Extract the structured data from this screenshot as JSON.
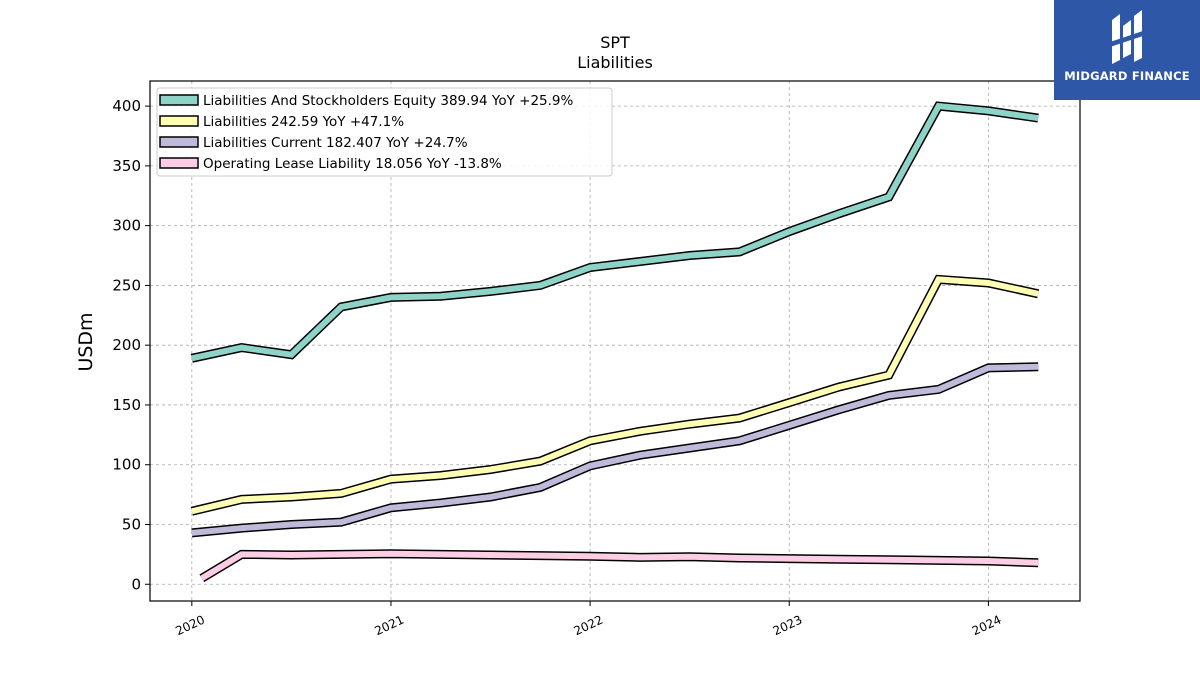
{
  "chart_data": {
    "type": "line",
    "title": "SPT",
    "subtitle": "Liabilities",
    "ylabel": "USDm",
    "xlabel": "",
    "ylim": [
      -14,
      421
    ],
    "xlim": [
      2019.79,
      2024.46
    ],
    "yticks": [
      0,
      50,
      100,
      150,
      200,
      250,
      300,
      350,
      400
    ],
    "xticks": [
      {
        "value": 2020,
        "label": "2020"
      },
      {
        "value": 2021,
        "label": "2021"
      },
      {
        "value": 2022,
        "label": "2022"
      },
      {
        "value": 2023,
        "label": "2023"
      },
      {
        "value": 2024,
        "label": "2024"
      }
    ],
    "grid": true,
    "legend_position": "top-left",
    "series": [
      {
        "name": "Liabilities And Stockholders Equity  389.94 YoY +25.9%",
        "color": "#8dd3c7",
        "x": [
          2020.0,
          2020.25,
          2020.5,
          2020.75,
          2021.0,
          2021.25,
          2021.5,
          2021.75,
          2022.0,
          2022.25,
          2022.5,
          2022.75,
          2023.0,
          2023.25,
          2023.5,
          2023.75,
          2024.0,
          2024.25
        ],
        "y": [
          189,
          198,
          192,
          232,
          240,
          241,
          245,
          250,
          265,
          270,
          275,
          278,
          295,
          310,
          324,
          400,
          396,
          390
        ]
      },
      {
        "name": "Liabilities  242.59 YoY +47.1%",
        "color": "#ffffb3",
        "x": [
          2020.0,
          2020.25,
          2020.5,
          2020.75,
          2021.0,
          2021.25,
          2021.5,
          2021.75,
          2022.0,
          2022.25,
          2022.5,
          2022.75,
          2023.0,
          2023.25,
          2023.5,
          2023.75,
          2024.0,
          2024.25
        ],
        "y": [
          61,
          71,
          73,
          76,
          88,
          91,
          96,
          103,
          120,
          128,
          134,
          139,
          152,
          165,
          175,
          255,
          252,
          243
        ]
      },
      {
        "name": "Liabilities Current  182.407 YoY +24.7%",
        "color": "#bebada",
        "x": [
          2020.0,
          2020.25,
          2020.5,
          2020.75,
          2021.0,
          2021.25,
          2021.5,
          2021.75,
          2022.0,
          2022.25,
          2022.5,
          2022.75,
          2023.0,
          2023.25,
          2023.5,
          2023.75,
          2024.0,
          2024.25
        ],
        "y": [
          43,
          47,
          50,
          52,
          64,
          68,
          73,
          81,
          99,
          108,
          114,
          120,
          133,
          146,
          158,
          163,
          181,
          182
        ]
      },
      {
        "name": "Operating Lease Liability  18.056 YoY -13.8%",
        "color": "#fccde5",
        "x": [
          2020.05,
          2020.25,
          2020.5,
          2020.75,
          2021.0,
          2021.25,
          2021.5,
          2021.75,
          2022.0,
          2022.25,
          2022.5,
          2022.75,
          2023.0,
          2023.25,
          2023.5,
          2023.75,
          2024.0,
          2024.25
        ],
        "y": [
          5,
          25,
          24.5,
          25,
          25.5,
          25,
          24.5,
          24,
          23.5,
          22.5,
          23,
          22,
          21.5,
          21,
          20.5,
          20,
          19.5,
          18
        ]
      }
    ]
  },
  "logo": {
    "text": "MIDGARD FINANCE"
  }
}
